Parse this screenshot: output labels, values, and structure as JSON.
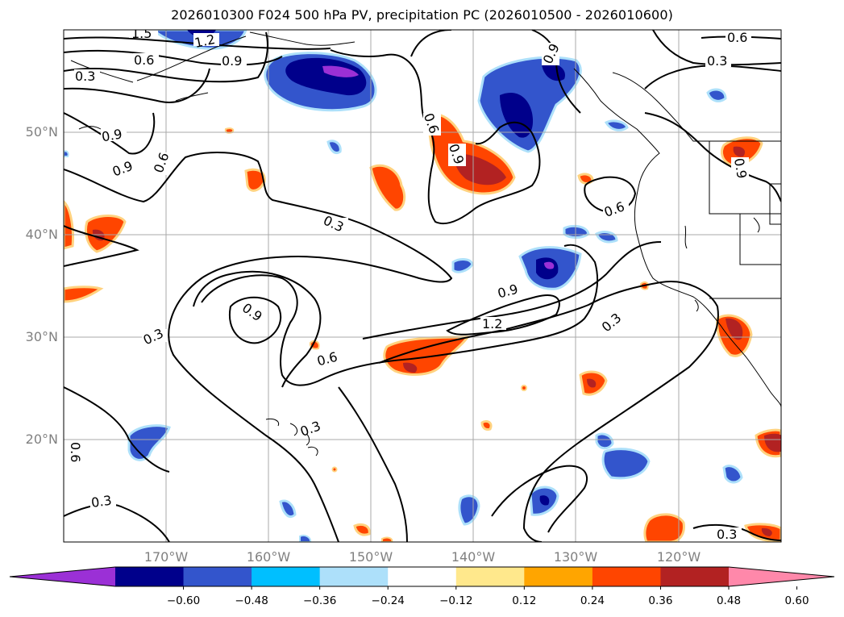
{
  "title": "2026010300 F024 500 hPa PV, precipitation PC (2026010500 - 2026010600)",
  "map": {
    "projection": "equirectangular",
    "lon_range": [
      -180,
      -110
    ],
    "lat_range": [
      10,
      60
    ],
    "gridlines": true,
    "latitude_labels": [
      "50°N",
      "40°N",
      "30°N",
      "20°N"
    ],
    "longitude_labels": [
      "170°W",
      "160°W",
      "150°W",
      "140°W",
      "130°W",
      "120°W"
    ],
    "contour_labels": [
      "1.5",
      "1.2",
      "0.6",
      "0.9",
      "0.3",
      "0.9",
      "0.6",
      "0.9",
      "0.9",
      "0.6",
      "0.9",
      "0.6",
      "0.3",
      "0.6",
      "0.9",
      "0.3",
      "0.3",
      "0.9",
      "0.9",
      "1.2",
      "0.3",
      "0.6",
      "0.3",
      "0.6",
      "0.3",
      "0.3",
      "0.3"
    ]
  },
  "colorbar": {
    "ticks": [
      "−0.60",
      "−0.48",
      "−0.36",
      "−0.24",
      "−0.12",
      "0.12",
      "0.24",
      "0.36",
      "0.48",
      "0.60"
    ],
    "colors": [
      "#9b30d6",
      "#00008b",
      "#3355cc",
      "#00bfff",
      "#ade0fa",
      "#ffffff",
      "#ffe88c",
      "#ffa500",
      "#ff4500",
      "#b22222",
      "#ff88aa"
    ],
    "extend": "both"
  }
}
